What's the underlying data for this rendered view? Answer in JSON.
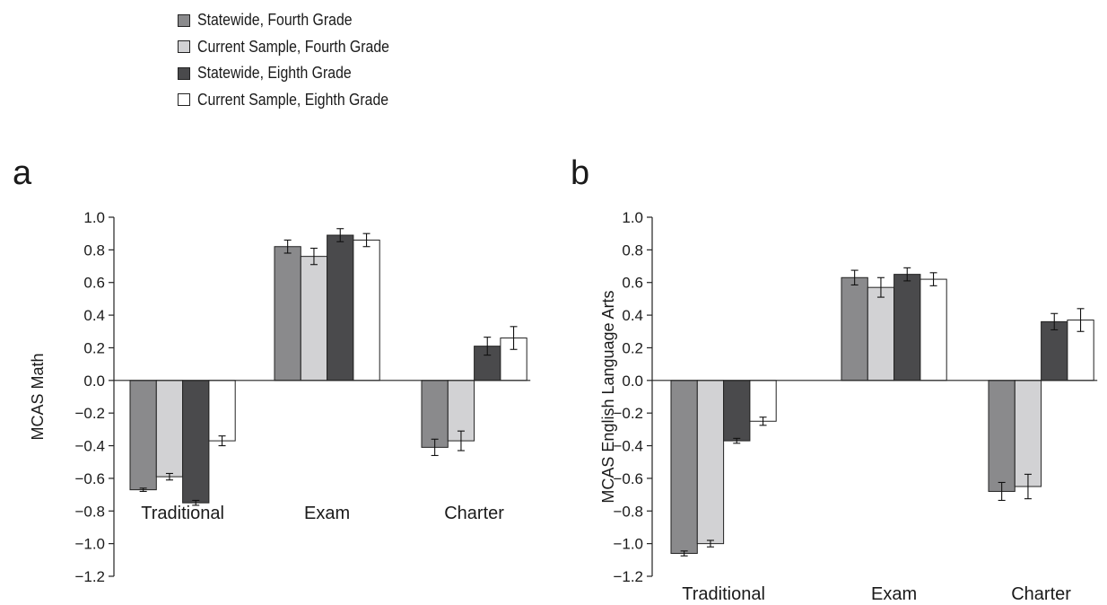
{
  "legend": [
    {
      "label": "Statewide, Fourth Grade",
      "color": "#8a8a8c"
    },
    {
      "label": "Current Sample, Fourth Grade",
      "color": "#d2d2d4"
    },
    {
      "label": "Statewide, Eighth Grade",
      "color": "#4a4a4c"
    },
    {
      "label": "Current Sample, Eighth Grade",
      "color": "#ffffff"
    }
  ],
  "chart_data": [
    {
      "type": "bar",
      "panel_label": "a",
      "ylabel": "MCAS Math",
      "categories": [
        "Traditional",
        "Exam",
        "Charter"
      ],
      "ylim": [
        -1.2,
        1.0
      ],
      "yticks": [
        "1.0",
        "0.8",
        "0.6",
        "0.4",
        "0.2",
        "0.0",
        "−0.2",
        "−0.4",
        "−0.6",
        "−0.8",
        "−1.0",
        "−1.2"
      ],
      "series": [
        {
          "name": "Statewide, Fourth Grade",
          "values": [
            -0.67,
            0.82,
            -0.41
          ],
          "errors": [
            0.01,
            0.04,
            0.05
          ]
        },
        {
          "name": "Current Sample, Fourth Grade",
          "values": [
            -0.59,
            0.76,
            -0.37
          ],
          "errors": [
            0.02,
            0.05,
            0.06
          ]
        },
        {
          "name": "Statewide, Eighth Grade",
          "values": [
            -0.75,
            0.89,
            0.21
          ],
          "errors": [
            0.015,
            0.04,
            0.055
          ]
        },
        {
          "name": "Current Sample, Eighth Grade",
          "values": [
            -0.37,
            0.86,
            0.26
          ],
          "errors": [
            0.03,
            0.04,
            0.07
          ]
        }
      ]
    },
    {
      "type": "bar",
      "panel_label": "b",
      "ylabel": "MCAS English Language Arts",
      "categories": [
        "Traditional",
        "Exam",
        "Charter"
      ],
      "ylim": [
        -1.2,
        1.0
      ],
      "yticks": [
        "1.0",
        "0.8",
        "0.6",
        "0.4",
        "0.2",
        "0.0",
        "−0.2",
        "−0.4",
        "−0.6",
        "−0.8",
        "−1.0",
        "−1.2"
      ],
      "series": [
        {
          "name": "Statewide, Fourth Grade",
          "values": [
            -1.06,
            0.63,
            -0.68
          ],
          "errors": [
            0.015,
            0.045,
            0.055
          ]
        },
        {
          "name": "Current Sample, Fourth Grade",
          "values": [
            -1.0,
            0.57,
            -0.65
          ],
          "errors": [
            0.02,
            0.06,
            0.075
          ]
        },
        {
          "name": "Statewide, Eighth Grade",
          "values": [
            -0.37,
            0.65,
            0.36
          ],
          "errors": [
            0.015,
            0.04,
            0.05
          ]
        },
        {
          "name": "Current Sample, Eighth Grade",
          "values": [
            -0.25,
            0.62,
            0.37
          ],
          "errors": [
            0.025,
            0.04,
            0.07
          ]
        }
      ]
    }
  ]
}
